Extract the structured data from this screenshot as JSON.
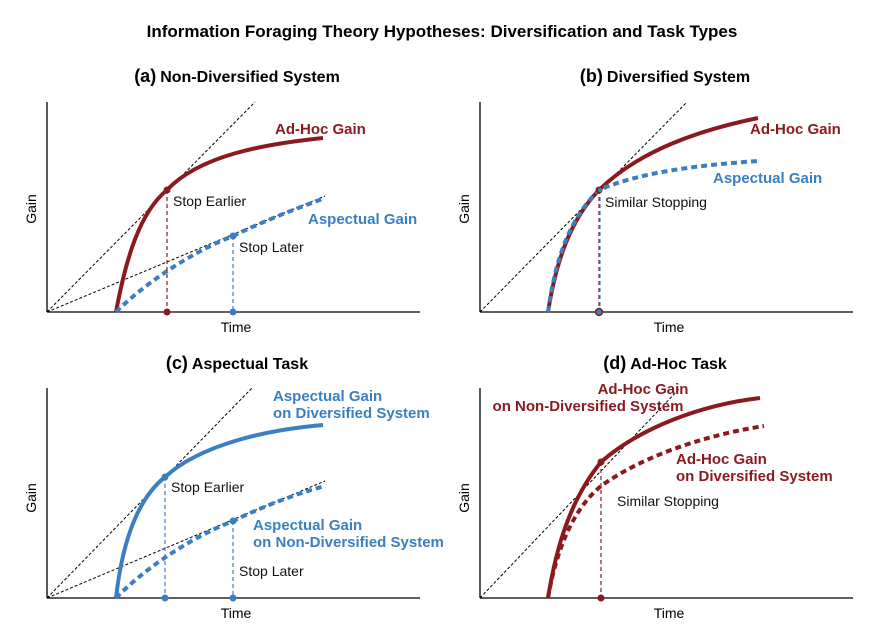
{
  "title": "Information Foraging Theory Hypotheses: Diversification and Task Types",
  "colors": {
    "adhoc": "#8b1a1f",
    "aspectual": "#3a7fc1",
    "axis": "#000000",
    "tangent": "#000000"
  },
  "panels": [
    {
      "letter": "(a)",
      "name": "Non-Diversified System",
      "xlabel": "Time",
      "ylabel": "Gain",
      "curve_labels": [
        "Ad-Hoc Gain",
        "Aspectual Gain"
      ],
      "annotations": [
        "Stop Earlier",
        "Stop Later"
      ]
    },
    {
      "letter": "(b)",
      "name": "Diversified System",
      "xlabel": "Time",
      "ylabel": "Gain",
      "curve_labels": [
        "Ad-Hoc Gain",
        "Aspectual Gain"
      ],
      "annotations": [
        "Similar Stopping"
      ]
    },
    {
      "letter": "(c)",
      "name": "Aspectual Task",
      "xlabel": "Time",
      "ylabel": "Gain",
      "curve_labels": [
        "Aspectual Gain",
        "on Diversified System",
        "Aspectual Gain",
        "on Non-Diversified System"
      ],
      "annotations": [
        "Stop Earlier",
        "Stop Later"
      ]
    },
    {
      "letter": "(d)",
      "name": "Ad-Hoc Task",
      "xlabel": "Time",
      "ylabel": "Gain",
      "curve_labels": [
        "Ad-Hoc Gain",
        "on Non-Diversified System",
        "Ad-Hoc Gain",
        "on Diversified System"
      ],
      "annotations": [
        "Similar Stopping"
      ]
    }
  ]
}
